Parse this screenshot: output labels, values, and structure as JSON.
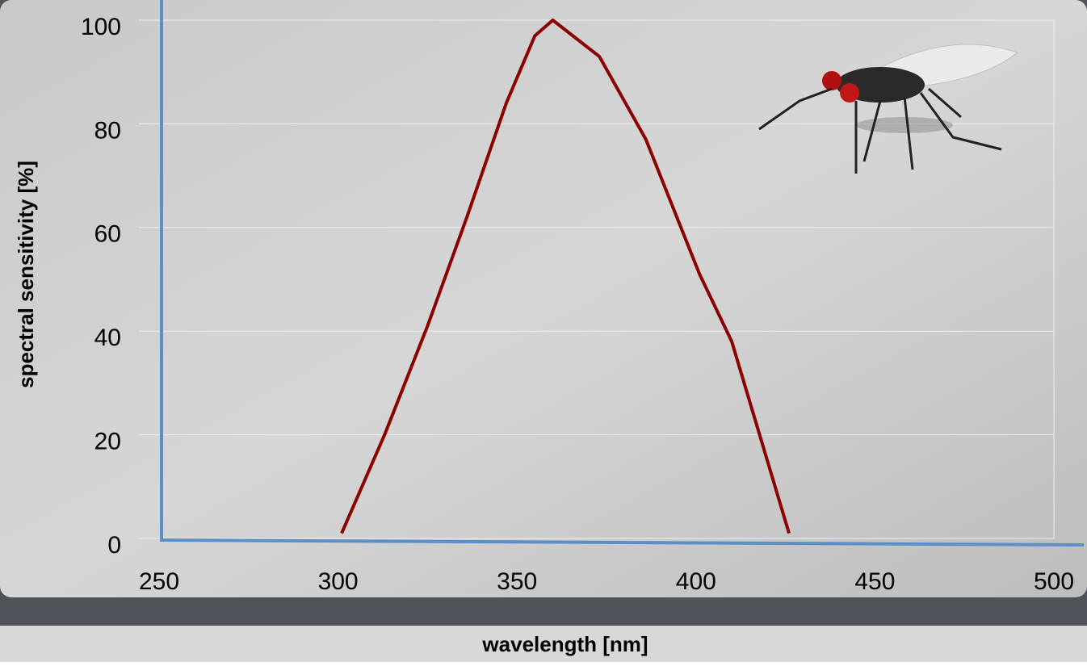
{
  "chart_data": {
    "type": "line",
    "x_label": "wavelength [nm]",
    "y_label": "spectral sensitivity [%]",
    "xlim": [
      250,
      500
    ],
    "xticks": [
      250,
      300,
      350,
      400,
      450,
      500
    ],
    "ylim": [
      0,
      100
    ],
    "yticks": [
      0,
      20,
      40,
      60,
      80,
      100
    ],
    "grid": true,
    "axis_color": "#5b8fc9",
    "series": [
      {
        "color": "#8b0000",
        "x": [
          301,
          313,
          325,
          336,
          347,
          355,
          360,
          373,
          386,
          401,
          410,
          426
        ],
        "values": [
          1,
          20,
          41,
          62,
          84,
          97,
          100,
          93,
          77,
          51,
          38,
          1
        ]
      }
    ]
  }
}
